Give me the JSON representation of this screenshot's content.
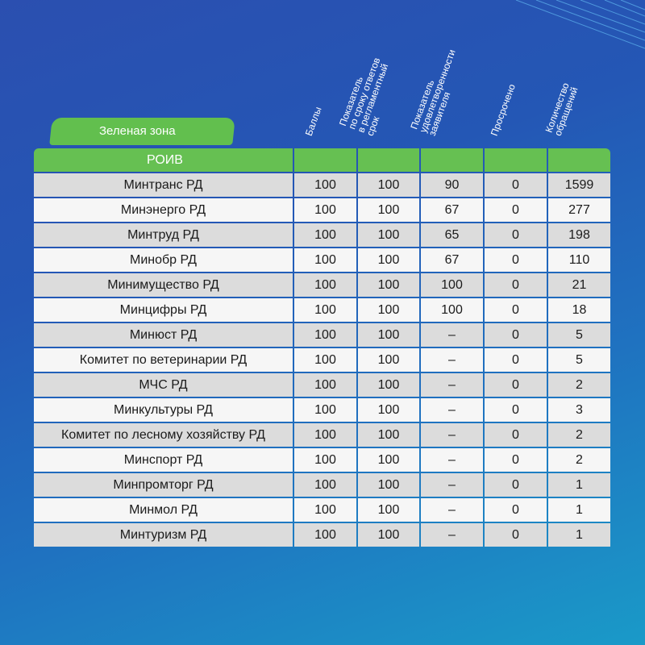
{
  "zone_label": "Зеленая зона",
  "group_label": "РОИВ",
  "columns": [
    "Баллы",
    "Показатель\nпо сроку ответов\nв регламентный\nсрок",
    "Показатель\nудовлетворенности\nзаявителя",
    "Просрочено",
    "Количество\nобращений"
  ],
  "rows": [
    {
      "name": "Минтранс РД",
      "v": [
        "100",
        "100",
        "90",
        "0",
        "1599"
      ]
    },
    {
      "name": "Минэнерго РД",
      "v": [
        "100",
        "100",
        "67",
        "0",
        "277"
      ]
    },
    {
      "name": "Минтруд РД",
      "v": [
        "100",
        "100",
        "65",
        "0",
        "198"
      ]
    },
    {
      "name": "Минобр РД",
      "v": [
        "100",
        "100",
        "67",
        "0",
        "110"
      ]
    },
    {
      "name": "Минимущество РД",
      "v": [
        "100",
        "100",
        "100",
        "0",
        "21"
      ]
    },
    {
      "name": "Минцифры РД",
      "v": [
        "100",
        "100",
        "100",
        "0",
        "18"
      ]
    },
    {
      "name": "Минюст РД",
      "v": [
        "100",
        "100",
        "–",
        "0",
        "5"
      ]
    },
    {
      "name": "Комитет по ветеринарии РД",
      "v": [
        "100",
        "100",
        "–",
        "0",
        "5"
      ]
    },
    {
      "name": "МЧС РД",
      "v": [
        "100",
        "100",
        "–",
        "0",
        "2"
      ]
    },
    {
      "name": "Минкультуры РД",
      "v": [
        "100",
        "100",
        "–",
        "0",
        "3"
      ]
    },
    {
      "name": "Комитет по лесному хозяйству РД",
      "v": [
        "100",
        "100",
        "–",
        "0",
        "2"
      ]
    },
    {
      "name": "Минспорт РД",
      "v": [
        "100",
        "100",
        "–",
        "0",
        "2"
      ]
    },
    {
      "name": "Минпромторг РД",
      "v": [
        "100",
        "100",
        "–",
        "0",
        "1"
      ]
    },
    {
      "name": "Минмол РД",
      "v": [
        "100",
        "100",
        "–",
        "0",
        "1"
      ]
    },
    {
      "name": "Минтуризм РД",
      "v": [
        "100",
        "100",
        "–",
        "0",
        "1"
      ]
    }
  ]
}
